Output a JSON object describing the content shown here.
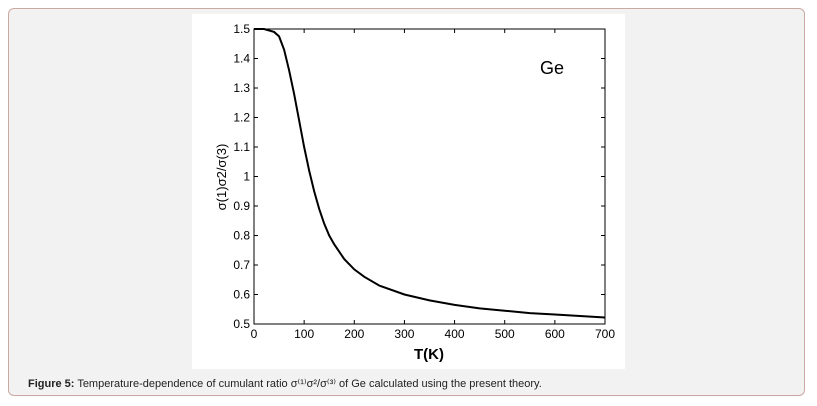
{
  "caption": {
    "label": "Figure 5:",
    "text": "Temperature-dependence of cumulant ratio σ⁽¹⁾σ²/σ⁽³⁾ of Ge calculated using the present theory."
  },
  "chart_data": {
    "type": "line",
    "title": "",
    "annotation": "Ge",
    "xlabel": "T(K)",
    "ylabel": "σ(1)σ2/σ(3)",
    "xlim": [
      0,
      700
    ],
    "ylim": [
      0.5,
      1.5
    ],
    "grid": false,
    "xticks": [
      "0",
      "100",
      "200",
      "300",
      "400",
      "500",
      "600",
      "700"
    ],
    "yticks": [
      "0.5",
      "0.6",
      "0.7",
      "0.8",
      "0.9",
      "1",
      "1.1",
      "1.2",
      "1.3",
      "1.4",
      "1.5"
    ],
    "series": [
      {
        "x": [
          0,
          20,
          40,
          50,
          60,
          70,
          80,
          90,
          100,
          110,
          120,
          130,
          140,
          150,
          160,
          180,
          200,
          220,
          250,
          300,
          350,
          400,
          450,
          500,
          550,
          600,
          650,
          700
        ],
        "y": [
          1.5,
          1.5,
          1.49,
          1.475,
          1.43,
          1.36,
          1.28,
          1.19,
          1.1,
          1.02,
          0.95,
          0.89,
          0.84,
          0.8,
          0.77,
          0.72,
          0.685,
          0.66,
          0.63,
          0.6,
          0.58,
          0.565,
          0.553,
          0.545,
          0.537,
          0.532,
          0.527,
          0.522
        ]
      }
    ]
  }
}
